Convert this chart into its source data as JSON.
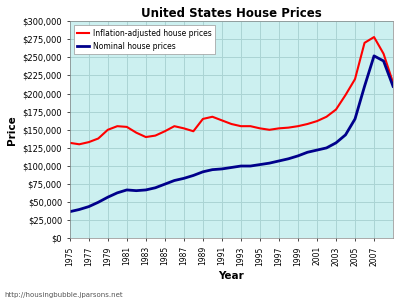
{
  "title": "United States House Prices",
  "xlabel": "Year",
  "ylabel": "Price",
  "fig_bg_color": "#ffffff",
  "plot_bg_color": "#ccf0f0",
  "grid_color": "#aad4d4",
  "source_text": "http://housingbubble.jparsons.net",
  "legend_labels": [
    "Inflation-adjusted house prices",
    "Nominal house prices"
  ],
  "line_colors": [
    "red",
    "#00008B"
  ],
  "ylim": [
    0,
    300000
  ],
  "yticks": [
    0,
    25000,
    50000,
    75000,
    100000,
    125000,
    150000,
    175000,
    200000,
    225000,
    250000,
    275000,
    300000
  ],
  "xlim": [
    1975,
    2009
  ],
  "xticks": [
    1975,
    1977,
    1979,
    1981,
    1983,
    1985,
    1987,
    1989,
    1991,
    1993,
    1995,
    1997,
    1999,
    2001,
    2003,
    2005,
    2007
  ],
  "inflation_years": [
    1975,
    1976,
    1977,
    1978,
    1979,
    1980,
    1981,
    1982,
    1983,
    1984,
    1985,
    1986,
    1987,
    1988,
    1989,
    1990,
    1991,
    1992,
    1993,
    1994,
    1995,
    1996,
    1997,
    1998,
    1999,
    2000,
    2001,
    2002,
    2003,
    2004,
    2005,
    2006,
    2007,
    2008,
    2009
  ],
  "inflation_values": [
    132000,
    130000,
    133000,
    138000,
    150000,
    155000,
    154000,
    146000,
    140000,
    142000,
    148000,
    155000,
    152000,
    148000,
    165000,
    168000,
    163000,
    158000,
    155000,
    155000,
    152000,
    150000,
    152000,
    153000,
    155000,
    158000,
    162000,
    168000,
    178000,
    198000,
    220000,
    270000,
    278000,
    255000,
    215000
  ],
  "nominal_years": [
    1975,
    1976,
    1977,
    1978,
    1979,
    1980,
    1981,
    1982,
    1983,
    1984,
    1985,
    1986,
    1987,
    1988,
    1989,
    1990,
    1991,
    1992,
    1993,
    1994,
    1995,
    1996,
    1997,
    1998,
    1999,
    2000,
    2001,
    2002,
    2003,
    2004,
    2005,
    2006,
    2007,
    2008,
    2009
  ],
  "nominal_values": [
    37000,
    40000,
    44000,
    50000,
    57000,
    63000,
    67000,
    66000,
    67000,
    70000,
    75000,
    80000,
    83000,
    87000,
    92000,
    95000,
    96000,
    98000,
    100000,
    100000,
    102000,
    104000,
    107000,
    110000,
    114000,
    119000,
    122000,
    125000,
    132000,
    143000,
    165000,
    210000,
    252000,
    245000,
    210000
  ]
}
